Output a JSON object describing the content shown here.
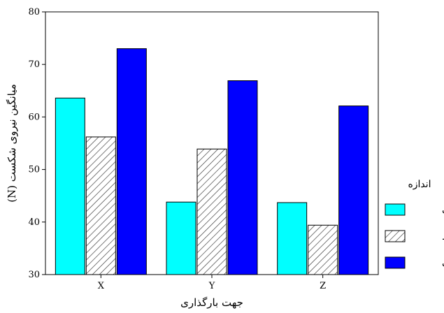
{
  "chart_data": {
    "type": "bar",
    "categories": [
      "X",
      "Y",
      "Z"
    ],
    "series": [
      {
        "name": "کوچک",
        "values": [
          63.6,
          43.8,
          43.7
        ],
        "color": "#00ffff",
        "pattern": "solid"
      },
      {
        "name": "متوسط",
        "values": [
          56.2,
          53.9,
          39.4
        ],
        "color": "#ffffff",
        "pattern": "hatch"
      },
      {
        "name": "بزرگ",
        "values": [
          73.0,
          66.9,
          62.1
        ],
        "color": "#0000ff",
        "pattern": "solid"
      }
    ],
    "xlabel": "جهت بارگذاری",
    "ylabel": "میانگین نیروی شکست (N)",
    "ylim": [
      30,
      80
    ],
    "yticks": [
      30,
      40,
      50,
      60,
      70,
      80
    ],
    "grid": false,
    "legend": {
      "title": "اندازه",
      "position": "right"
    }
  }
}
